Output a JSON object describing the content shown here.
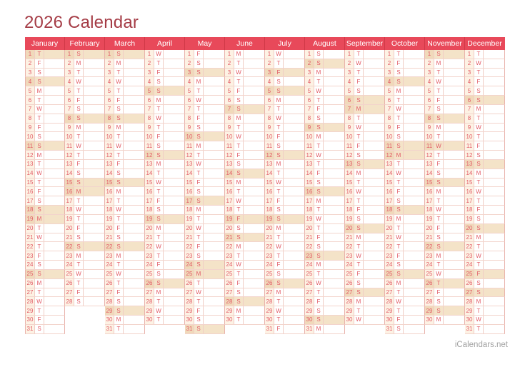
{
  "title": "2026 Calendar",
  "footer": {
    "brand": "iCalendars.net"
  },
  "colors": {
    "header_red": "#e8495a",
    "title_red": "#a53c46",
    "day_text_red": "#e25b66",
    "highlight_beige": "#f4e3c8",
    "number_cell_cream": "#fdf2e4",
    "grid_line_pink": "#f3d4cc",
    "footer_gray": "#a2a2a2"
  },
  "calendar": {
    "year": "2026",
    "months": [
      {
        "name": "January",
        "days": 31,
        "dow_letters": "TFSSMTWTFSSMTWTFSSMTWTFSSMTWTFS",
        "highlighted_days": [
          1,
          4,
          11,
          18,
          19,
          25
        ]
      },
      {
        "name": "February",
        "days": 28,
        "dow_letters": "SMTWTFSSMTWTFSSMTWTFSSMTWTFS",
        "highlighted_days": [
          1,
          8,
          15,
          16,
          22
        ]
      },
      {
        "name": "March",
        "days": 31,
        "dow_letters": "SMTWTFSSMTWTFSSMTWTFSSMTWTFSSMT",
        "highlighted_days": [
          1,
          8,
          15,
          22,
          29
        ]
      },
      {
        "name": "April",
        "days": 30,
        "dow_letters": "WTFSSMTWTFSSMTWTFSSMTWTFSSMTWT",
        "highlighted_days": [
          5,
          12,
          19,
          26
        ]
      },
      {
        "name": "May",
        "days": 31,
        "dow_letters": "FSSMTWTFSSMTWTFSSMTWTFSSMTWTFSS",
        "highlighted_days": [
          3,
          10,
          17,
          24,
          25,
          31
        ]
      },
      {
        "name": "June",
        "days": 30,
        "dow_letters": "MTWTFSSMTWTFSSMTWTFSSMTWTFSSMT",
        "highlighted_days": [
          7,
          14,
          19,
          21,
          28
        ]
      },
      {
        "name": "July",
        "days": 31,
        "dow_letters": "WTFSSMTWTFSSMTWTFSSMTWTFSSMTWTF",
        "highlighted_days": [
          3,
          5,
          12,
          19,
          26
        ]
      },
      {
        "name": "August",
        "days": 31,
        "dow_letters": "SSMTWTFSSMTWTFSSMTWTFSSMTWTFSSM",
        "highlighted_days": [
          2,
          9,
          16,
          23,
          30
        ]
      },
      {
        "name": "September",
        "days": 30,
        "dow_letters": "TWTFSSMTWTFSSMTWTFSSMTWTFSSMTW",
        "highlighted_days": [
          6,
          7,
          13,
          20,
          27
        ]
      },
      {
        "name": "October",
        "days": 31,
        "dow_letters": "TFSSMTWTFSSMTWTFSSMTWTFSSMTWTFS",
        "highlighted_days": [
          4,
          11,
          12,
          18,
          25
        ]
      },
      {
        "name": "November",
        "days": 30,
        "dow_letters": "SMTWTFSSMTWTFSSMTWTFSSMTWTFSSM",
        "highlighted_days": [
          1,
          8,
          11,
          15,
          22,
          26,
          29
        ]
      },
      {
        "name": "December",
        "days": 31,
        "dow_letters": "TWTFSSMTWTFSSMTWTFSSMTWTFSSMTWT",
        "highlighted_days": [
          6,
          13,
          20,
          25,
          27
        ]
      }
    ]
  }
}
